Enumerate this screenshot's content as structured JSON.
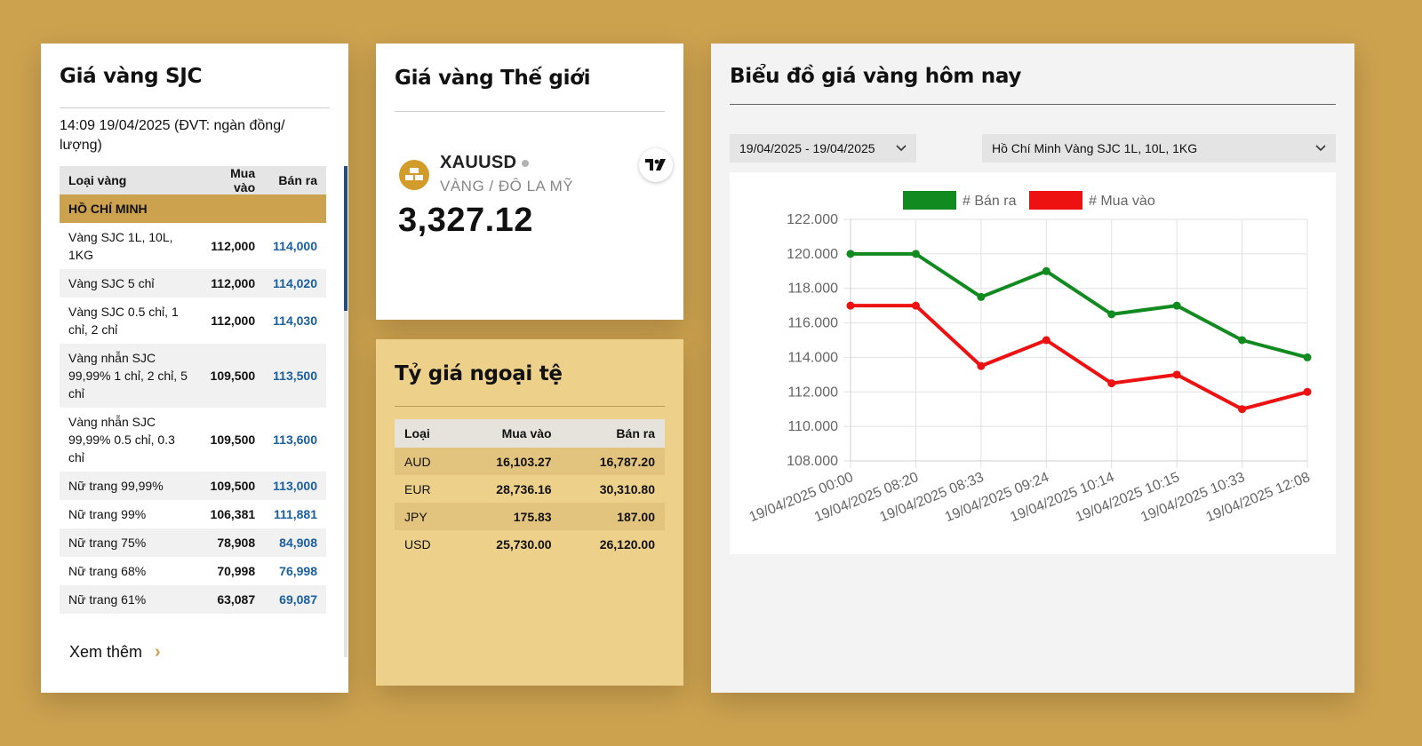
{
  "sjc": {
    "title": "Giá vàng SJC",
    "updated": "14:09 19/04/2025 (ĐVT: ngàn đồng/ lượng)",
    "headers": {
      "type": "Loại vàng",
      "buy": "Mua vào",
      "sell": "Bán ra"
    },
    "region": "HỒ CHÍ MINH",
    "rows": [
      {
        "name": "Vàng SJC 1L, 10L, 1KG",
        "buy": "112,000",
        "sell": "114,000"
      },
      {
        "name": "Vàng SJC 5 chỉ",
        "buy": "112,000",
        "sell": "114,020"
      },
      {
        "name": "Vàng SJC 0.5 chỉ, 1 chỉ, 2 chỉ",
        "buy": "112,000",
        "sell": "114,030"
      },
      {
        "name": "Vàng nhẫn SJC 99,99% 1 chỉ, 2 chỉ, 5 chỉ",
        "buy": "109,500",
        "sell": "113,500"
      },
      {
        "name": "Vàng nhẫn SJC 99,99% 0.5 chỉ, 0.3 chỉ",
        "buy": "109,500",
        "sell": "113,600"
      },
      {
        "name": "Nữ trang 99,99%",
        "buy": "109,500",
        "sell": "113,000"
      },
      {
        "name": "Nữ trang 99%",
        "buy": "106,381",
        "sell": "111,881"
      },
      {
        "name": "Nữ trang 75%",
        "buy": "78,908",
        "sell": "84,908"
      },
      {
        "name": "Nữ trang 68%",
        "buy": "70,998",
        "sell": "76,998"
      },
      {
        "name": "Nữ trang 61%",
        "buy": "63,087",
        "sell": "69,087"
      }
    ],
    "more_label": "Xem thêm"
  },
  "world": {
    "title": "Giá vàng Thế giới",
    "symbol": "XAUUSD",
    "symbol_desc": "VÀNG / ĐÔ LA MỸ",
    "price": "3,327.12",
    "tv_logo": "TV"
  },
  "fx": {
    "title": "Tỷ giá ngoại tệ",
    "headers": {
      "type": "Loại",
      "buy": "Mua vào",
      "sell": "Bán ra"
    },
    "rows": [
      {
        "code": "AUD",
        "buy": "16,103.27",
        "sell": "16,787.20"
      },
      {
        "code": "EUR",
        "buy": "28,736.16",
        "sell": "30,310.80"
      },
      {
        "code": "JPY",
        "buy": "175.83",
        "sell": "187.00"
      },
      {
        "code": "USD",
        "buy": "25,730.00",
        "sell": "26,120.00"
      }
    ]
  },
  "chart_card": {
    "title": "Biểu đồ giá vàng hôm nay",
    "date_range": "19/04/2025 - 19/04/2025",
    "region_product": "Hồ Chí Minh Vàng SJC 1L, 10L, 1KG"
  },
  "colors": {
    "background": "#cda24f",
    "sell_line": "#118a1f",
    "buy_line": "#ee1111",
    "price_blue": "#1a5fa0"
  },
  "chart_data": {
    "type": "line",
    "x": [
      "19/04/2025 00:00",
      "19/04/2025 08:20",
      "19/04/2025 08:33",
      "19/04/2025 09:24",
      "19/04/2025 10:14",
      "19/04/2025 10:15",
      "19/04/2025 10:33",
      "19/04/2025 12:08"
    ],
    "series": [
      {
        "name": "# Bán ra",
        "color": "#118a1f",
        "values": [
          120000,
          120000,
          117500,
          119000,
          116500,
          117000,
          115000,
          114000
        ]
      },
      {
        "name": "# Mua vào",
        "color": "#ee1111",
        "values": [
          117000,
          117000,
          113500,
          115000,
          112500,
          113000,
          111000,
          112000
        ]
      }
    ],
    "ylim": [
      108000,
      122000
    ],
    "yticks": [
      "122.000",
      "120.000",
      "118.000",
      "116.000",
      "114.000",
      "112.000",
      "110.000",
      "108.000"
    ],
    "grid": true,
    "legend": "top"
  }
}
